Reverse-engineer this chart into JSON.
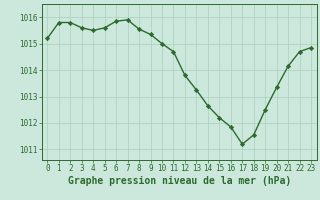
{
  "x": [
    0,
    1,
    2,
    3,
    4,
    5,
    6,
    7,
    8,
    9,
    10,
    11,
    12,
    13,
    14,
    15,
    16,
    17,
    18,
    19,
    20,
    21,
    22,
    23
  ],
  "y": [
    1015.2,
    1015.8,
    1015.8,
    1015.6,
    1015.5,
    1015.6,
    1015.85,
    1015.9,
    1015.55,
    1015.35,
    1015.0,
    1014.7,
    1013.8,
    1013.25,
    1012.65,
    1012.2,
    1011.85,
    1011.2,
    1011.55,
    1012.5,
    1013.35,
    1014.15,
    1014.7,
    1014.85
  ],
  "line_color": "#2d6a2d",
  "marker": "D",
  "marker_size": 2.2,
  "line_width": 1.0,
  "bg_color": "#cce8dc",
  "grid_color": "#aacfbc",
  "axis_color": "#2d6a2d",
  "xlabel": "Graphe pression niveau de la mer (hPa)",
  "xlabel_fontsize": 7,
  "xlabel_color": "#2d6a2d",
  "xlabel_bold": true,
  "ytick_labels": [
    "1011",
    "1012",
    "1013",
    "1014",
    "1015",
    "1016"
  ],
  "ytick_values": [
    1011,
    1012,
    1013,
    1014,
    1015,
    1016
  ],
  "ylim": [
    1010.6,
    1016.5
  ],
  "xlim": [
    -0.5,
    23.5
  ],
  "xtick_values": [
    0,
    1,
    2,
    3,
    4,
    5,
    6,
    7,
    8,
    9,
    10,
    11,
    12,
    13,
    14,
    15,
    16,
    17,
    18,
    19,
    20,
    21,
    22,
    23
  ],
  "tick_fontsize": 5.5
}
